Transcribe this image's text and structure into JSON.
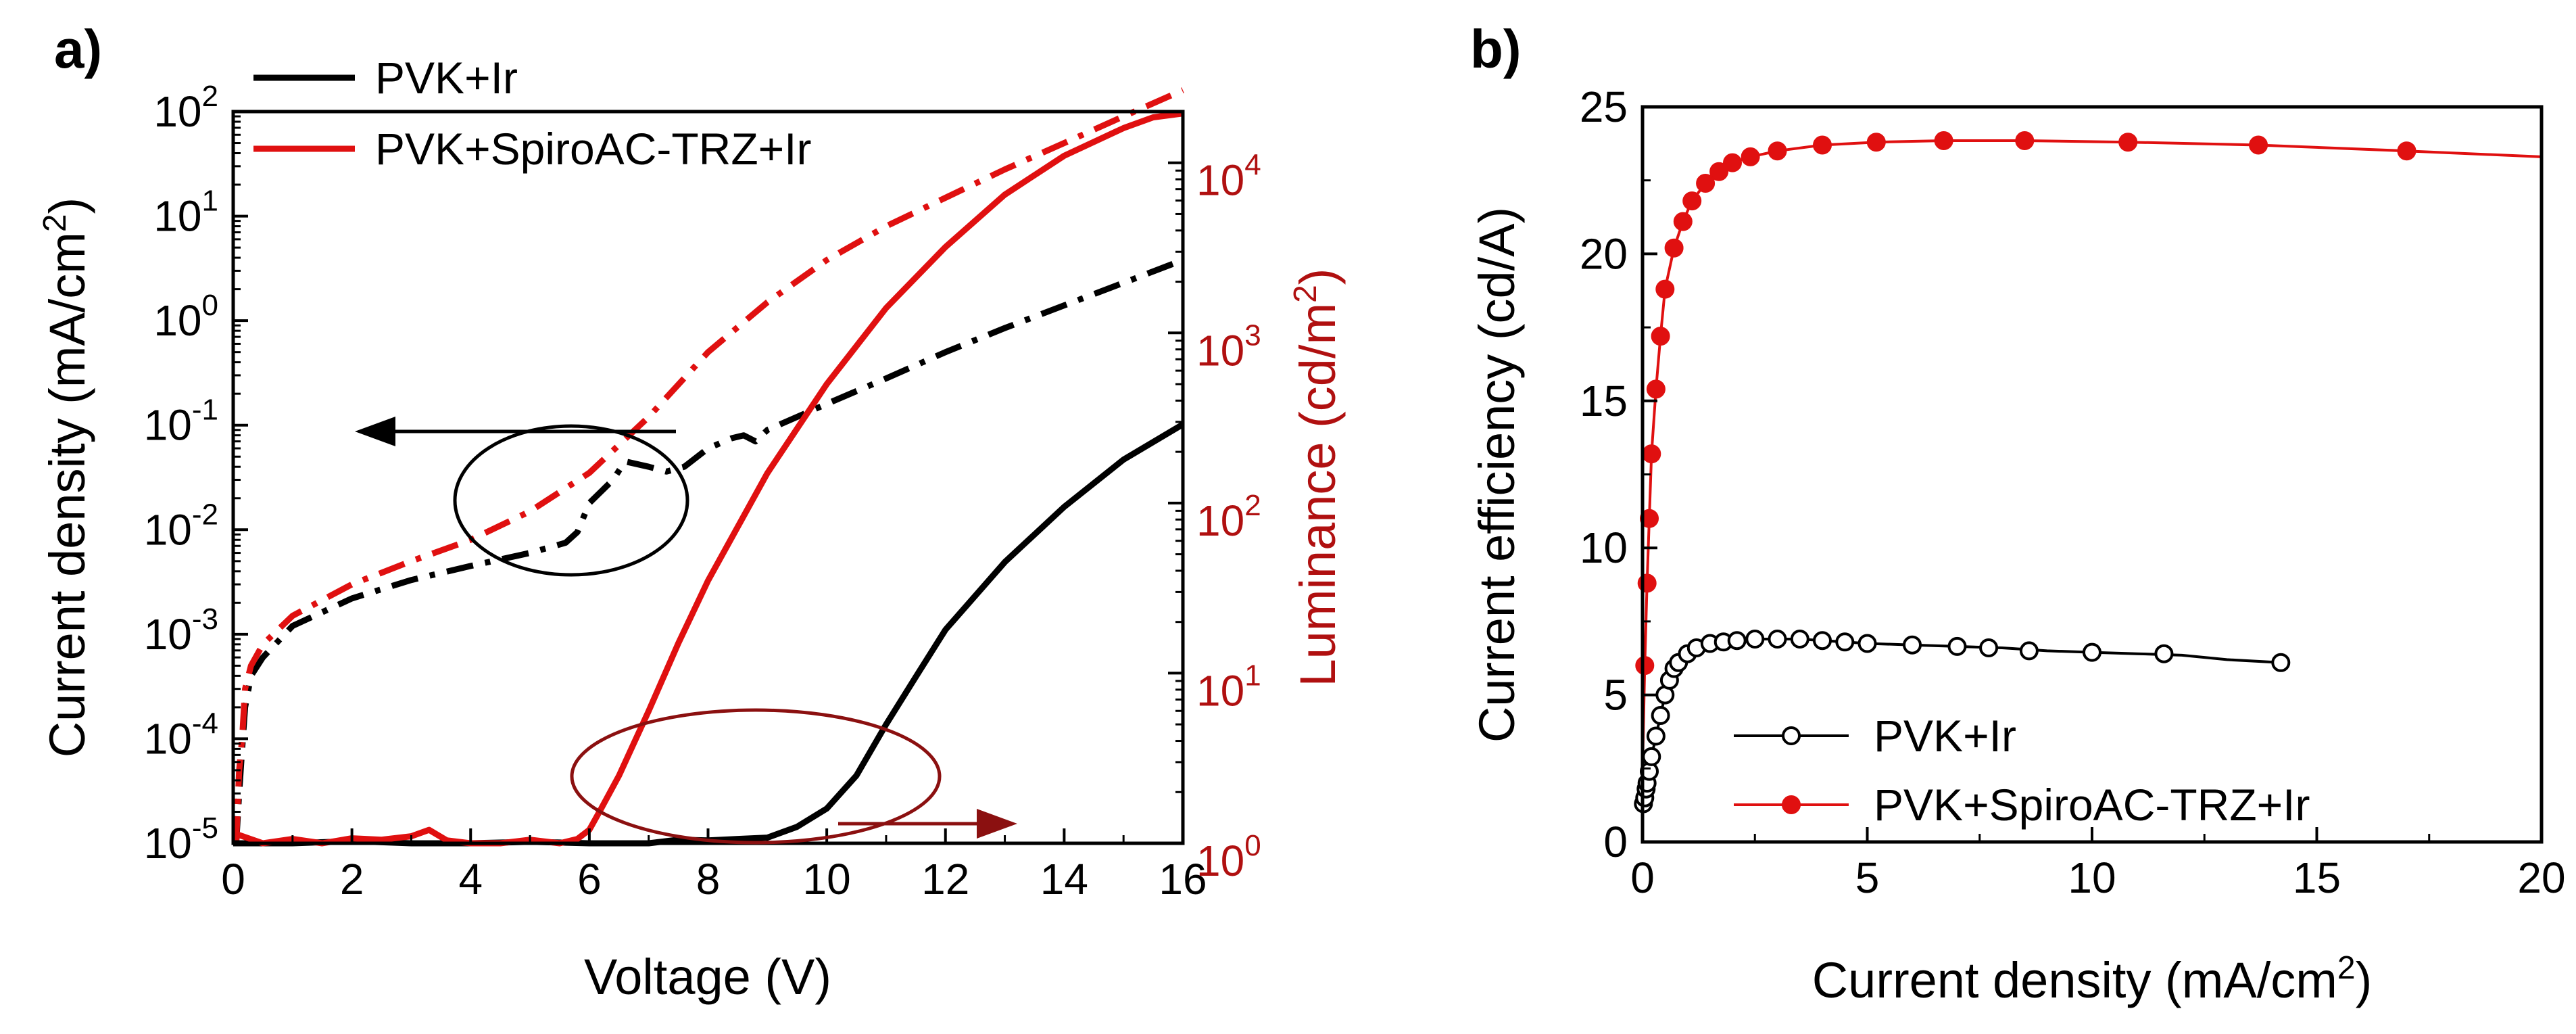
{
  "chart_data": [
    {
      "panel_label": "a)",
      "type": "line",
      "xlabel": "Voltage (V)",
      "ylabel_left": "Current density (mA/cm",
      "ylabel_left_sup": "2",
      "ylabel_left_end": ")",
      "ylabel_right": "Luminance (cd/m",
      "ylabel_right_sup": "2",
      "ylabel_right_end": ")",
      "xlim": [
        0,
        16
      ],
      "ylim_left": [
        1e-05,
        100
      ],
      "ylim_right": [
        1,
        20000
      ],
      "yscale": "log",
      "x_ticks": [
        0,
        2,
        4,
        6,
        8,
        10,
        12,
        14,
        16
      ],
      "x_tick_labels": [
        "0",
        "2",
        "4",
        "6",
        "8",
        "10",
        "12",
        "14",
        "16"
      ],
      "left_ticks": [
        {
          "base": "10",
          "exp": "-5"
        },
        {
          "base": "10",
          "exp": "-4"
        },
        {
          "base": "10",
          "exp": "-3"
        },
        {
          "base": "10",
          "exp": "-2"
        },
        {
          "base": "10",
          "exp": "-1"
        },
        {
          "base": "10",
          "exp": "0"
        },
        {
          "base": "10",
          "exp": "1"
        },
        {
          "base": "10",
          "exp": "2"
        }
      ],
      "right_ticks": [
        {
          "base": "10",
          "exp": "0"
        },
        {
          "base": "10",
          "exp": "1"
        },
        {
          "base": "10",
          "exp": "2"
        },
        {
          "base": "10",
          "exp": "3"
        },
        {
          "base": "10",
          "exp": "4"
        }
      ],
      "legend": [
        {
          "label": "PVK+Ir",
          "color": "#000000"
        },
        {
          "label": "PVK+SpiroAC-TRZ+Ir",
          "color": "#e01010"
        }
      ],
      "series": [
        {
          "name": "PVK+Ir current density",
          "axis": "left",
          "color": "#000000",
          "style": "dashdot",
          "x": [
            0.05,
            0.1,
            0.15,
            0.2,
            0.3,
            0.5,
            1,
            2,
            3,
            4,
            5,
            5.6,
            5.8,
            6,
            6.4,
            6.6,
            7,
            7.3,
            7.6,
            8,
            8.4,
            8.6,
            8.8,
            9,
            10,
            11,
            12,
            13,
            14,
            15,
            16
          ],
          "y": [
            1e-05,
            3e-05,
            8e-05,
            0.0002,
            0.0004,
            0.0006,
            0.0012,
            0.0022,
            0.0033,
            0.0045,
            0.006,
            0.0075,
            0.0095,
            0.018,
            0.03,
            0.045,
            0.04,
            0.036,
            0.04,
            0.06,
            0.075,
            0.08,
            0.07,
            0.09,
            0.16,
            0.28,
            0.5,
            0.85,
            1.4,
            2.3,
            3.8
          ]
        },
        {
          "name": "PVK+SpiroAC-TRZ+Ir current density",
          "axis": "left",
          "color": "#e01010",
          "style": "dashdot",
          "x": [
            0.05,
            0.1,
            0.15,
            0.2,
            0.3,
            0.5,
            1,
            2,
            3,
            4,
            5,
            6,
            7,
            8,
            9,
            10,
            11,
            12,
            13,
            14,
            15,
            16
          ],
          "y": [
            1e-05,
            5e-05,
            0.0001,
            0.0003,
            0.0005,
            0.0008,
            0.0015,
            0.003,
            0.005,
            0.008,
            0.015,
            0.035,
            0.12,
            0.5,
            1.5,
            3.8,
            8,
            15,
            28,
            50,
            90,
            160
          ]
        },
        {
          "name": "PVK+Ir luminance",
          "axis": "right",
          "color": "#000000",
          "style": "solid",
          "x": [
            0,
            1,
            2,
            3,
            4,
            5,
            6,
            7,
            7.5,
            8,
            8.5,
            9,
            9.5,
            10,
            10.5,
            11,
            11.5,
            12,
            13,
            14,
            15,
            16
          ],
          "y": [
            1,
            1,
            1.03,
            1,
            1,
            1.02,
            1,
            1,
            1.05,
            1.04,
            1.06,
            1.08,
            1.25,
            1.6,
            2.5,
            5,
            9.5,
            18,
            45,
            95,
            180,
            290
          ]
        },
        {
          "name": "PVK+SpiroAC-TRZ+Ir luminance",
          "axis": "right",
          "color": "#e01010",
          "style": "solid",
          "x": [
            0,
            0.5,
            1,
            1.5,
            2,
            2.5,
            3,
            3.3,
            3.6,
            4,
            4.5,
            5,
            5.5,
            5.8,
            6,
            6.2,
            6.5,
            7,
            7.5,
            8,
            9,
            10,
            11,
            12,
            13,
            14,
            15,
            15.5,
            16
          ],
          "y": [
            1.15,
            1,
            1.06,
            1,
            1.07,
            1.05,
            1.1,
            1.2,
            1.04,
            1,
            1,
            1.05,
            1,
            1.06,
            1.2,
            1.6,
            2.5,
            6,
            15,
            35,
            150,
            500,
            1400,
            3200,
            6500,
            11000,
            16000,
            18500,
            19500
          ]
        }
      ],
      "annotations": [
        {
          "type": "ellipse-with-arrow",
          "target_axis": "left",
          "color": "#000000",
          "arrow_direction": "left"
        },
        {
          "type": "ellipse-with-arrow",
          "target_axis": "right",
          "color": "#8b1010",
          "arrow_direction": "right"
        }
      ]
    },
    {
      "panel_label": "b)",
      "type": "line",
      "xlabel": "Current density (mA/cm",
      "xlabel_sup": "2",
      "xlabel_end": ")",
      "ylabel": "Current efficiency (cd/A)",
      "xlim": [
        0,
        20
      ],
      "ylim": [
        0,
        25
      ],
      "x_ticks": [
        0,
        5,
        10,
        15,
        20
      ],
      "x_tick_labels": [
        "0",
        "5",
        "10",
        "15",
        "20"
      ],
      "y_ticks": [
        0,
        5,
        10,
        15,
        20,
        25
      ],
      "y_tick_labels": [
        "0",
        "5",
        "10",
        "15",
        "20",
        "25"
      ],
      "legend": [
        {
          "label": "PVK+Ir",
          "color": "#000000",
          "marker": "open-circle"
        },
        {
          "label": "PVK+SpiroAC-TRZ+Ir",
          "color": "#e01010",
          "marker": "filled-circle"
        }
      ],
      "series": [
        {
          "name": "PVK+Ir",
          "color": "#000000",
          "marker": "open-circle",
          "line_x": [
            0.02,
            0.05,
            0.08,
            0.1,
            0.15,
            0.2,
            0.3,
            0.4,
            0.5,
            0.6,
            0.7,
            0.8,
            1.0,
            1.2,
            1.5,
            1.8,
            2.1,
            2.5,
            3.0,
            3.5,
            4.0,
            4.5,
            5.0,
            6.0,
            7.0,
            8.0,
            9.0,
            10.0,
            11.0,
            12.0,
            13.0,
            14.2
          ],
          "line_y": [
            1.3,
            1.5,
            1.8,
            2.0,
            2.4,
            2.9,
            3.6,
            4.3,
            5.0,
            5.5,
            5.9,
            6.1,
            6.4,
            6.6,
            6.75,
            6.8,
            6.85,
            6.9,
            6.9,
            6.9,
            6.85,
            6.8,
            6.75,
            6.7,
            6.65,
            6.6,
            6.5,
            6.45,
            6.4,
            6.35,
            6.2,
            6.1
          ],
          "x": [
            0.02,
            0.05,
            0.08,
            0.1,
            0.15,
            0.2,
            0.3,
            0.4,
            0.5,
            0.6,
            0.7,
            0.8,
            1.0,
            1.2,
            1.5,
            1.8,
            2.1,
            2.5,
            3.0,
            3.5,
            4.0,
            4.5,
            5.0,
            6.0,
            7.0,
            7.7,
            8.6,
            10.0,
            11.6,
            14.2
          ],
          "y": [
            1.3,
            1.5,
            1.8,
            2.0,
            2.4,
            2.9,
            3.6,
            4.3,
            5.0,
            5.5,
            5.9,
            6.1,
            6.4,
            6.6,
            6.75,
            6.8,
            6.85,
            6.9,
            6.9,
            6.9,
            6.85,
            6.8,
            6.75,
            6.7,
            6.65,
            6.6,
            6.5,
            6.45,
            6.4,
            6.1
          ]
        },
        {
          "name": "PVK+SpiroAC-TRZ+Ir",
          "color": "#e01010",
          "marker": "filled-circle",
          "line_x": [
            0.0,
            0.05,
            0.1,
            0.15,
            0.2,
            0.3,
            0.4,
            0.5,
            0.7,
            0.9,
            1.1,
            1.4,
            1.7,
            2.0,
            2.4,
            3.0,
            4.0,
            5.2,
            6.7,
            8.5,
            10.8,
            13.7,
            17.0,
            20.0
          ],
          "line_y": [
            2.5,
            6.0,
            8.8,
            11.0,
            13.2,
            15.4,
            17.2,
            18.8,
            20.2,
            21.1,
            21.8,
            22.4,
            22.8,
            23.1,
            23.3,
            23.5,
            23.7,
            23.8,
            23.85,
            23.85,
            23.8,
            23.7,
            23.5,
            23.3
          ],
          "x": [
            0.05,
            0.1,
            0.15,
            0.2,
            0.3,
            0.4,
            0.5,
            0.7,
            0.9,
            1.1,
            1.4,
            1.7,
            2.0,
            2.4,
            3.0,
            4.0,
            5.2,
            6.7,
            8.5,
            10.8,
            13.7,
            17.0
          ],
          "y": [
            6.0,
            8.8,
            11.0,
            13.2,
            15.4,
            17.2,
            18.8,
            20.2,
            21.1,
            21.8,
            22.4,
            22.8,
            23.1,
            23.3,
            23.5,
            23.7,
            23.8,
            23.85,
            23.85,
            23.8,
            23.7,
            23.5
          ]
        }
      ]
    }
  ]
}
